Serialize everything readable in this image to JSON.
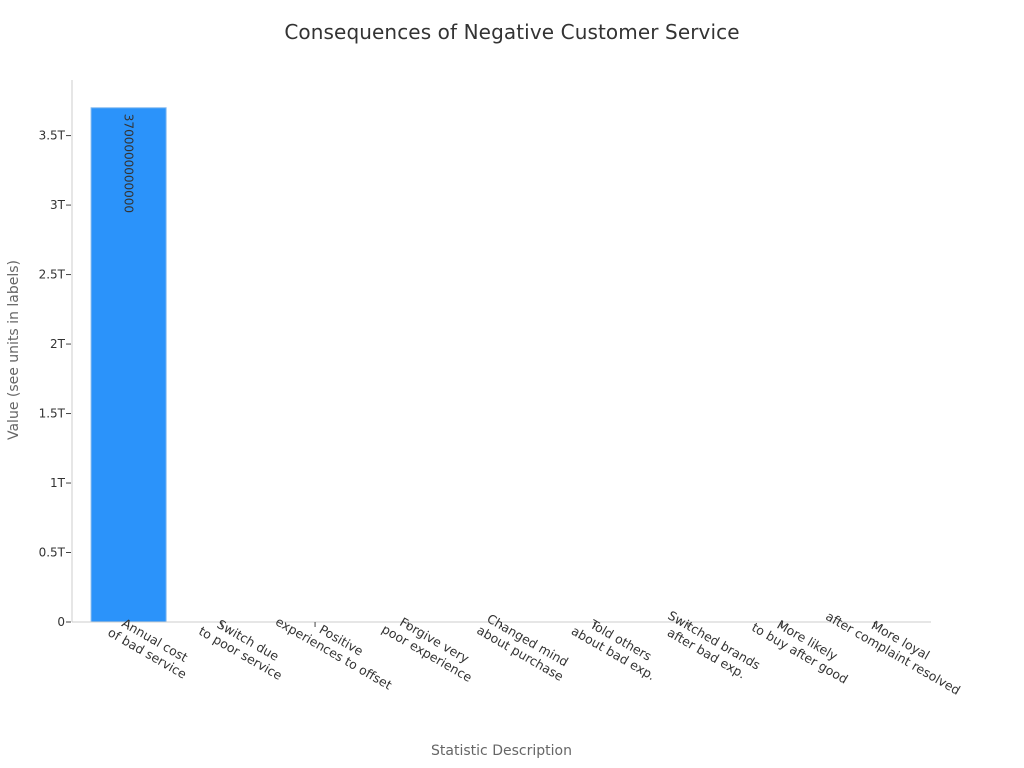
{
  "chart_data": {
    "type": "bar",
    "title": "Consequences of Negative Customer Service",
    "xlabel": "Statistic Description",
    "ylabel": "Value (see units in labels)",
    "categories": [
      [
        "Annual cost",
        "of bad service"
      ],
      [
        "Switch due",
        "to poor service"
      ],
      [
        "Positive",
        "experiences to offset"
      ],
      [
        "Forgive very",
        "poor experience"
      ],
      [
        "Changed mind",
        "about purchase"
      ],
      [
        "Told others",
        "about bad exp."
      ],
      [
        "Switched brands",
        "after bad exp."
      ],
      [
        "More likely",
        "to buy after good"
      ],
      [
        "More loyal",
        "after complaint resolved"
      ]
    ],
    "values": [
      3700000000000,
      0,
      0,
      0,
      0,
      0,
      0,
      0,
      0
    ],
    "data_labels": [
      "3700000000000",
      "",
      "",
      "",
      "",
      "",
      "",
      "",
      ""
    ],
    "ylim": [
      0,
      3900000000000
    ],
    "yticks": [
      0,
      500000000000,
      1000000000000,
      1500000000000,
      2000000000000,
      2500000000000,
      3000000000000,
      3500000000000
    ],
    "ytick_labels": [
      "0",
      "0.5T",
      "1T",
      "1.5T",
      "2T",
      "2.5T",
      "3T",
      "3.5T"
    ],
    "bar_color": "#2b93fa",
    "grid": false,
    "legend": "none"
  }
}
